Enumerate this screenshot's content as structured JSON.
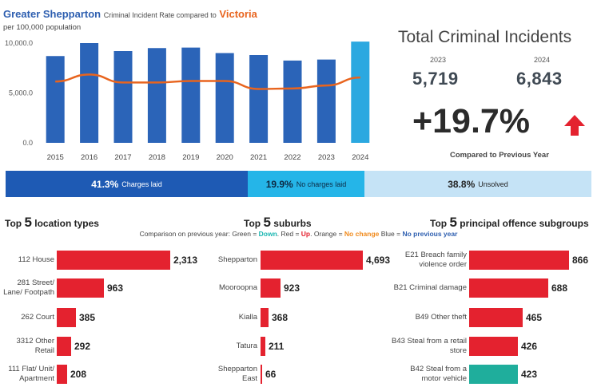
{
  "header": {
    "region": "Greater Shepparton",
    "mid_text": "Criminal Incident Rate compared to",
    "compare_region": "Victoria",
    "subtitle": "per 100,000 population"
  },
  "chart_data": [
    {
      "type": "bar",
      "title": "Greater Shepparton Criminal Incident Rate compared to Victoria",
      "ylabel": "per 100,000 population",
      "categories": [
        "2015",
        "2016",
        "2017",
        "2018",
        "2019",
        "2020",
        "2021",
        "2022",
        "2023",
        "2024"
      ],
      "ylim": [
        0,
        10000
      ],
      "yticks": [
        "0.0",
        "5,000.0",
        "10,000.0"
      ],
      "series": [
        {
          "name": "Greater Shepparton",
          "kind": "bar",
          "color": "#2b64b8",
          "highlight_color": "#2ba8e0",
          "values": [
            8700,
            10000,
            9200,
            9500,
            9550,
            9000,
            8800,
            8250,
            8350,
            10150
          ]
        },
        {
          "name": "Victoria",
          "kind": "line",
          "color": "#e8641e",
          "values": [
            6150,
            6850,
            6050,
            6050,
            6200,
            6200,
            5400,
            5450,
            5750,
            6550
          ]
        }
      ]
    },
    {
      "type": "bar",
      "orientation": "horizontal",
      "title": "Top 5 location types",
      "categories": [
        "112 House",
        "281 Street/ Lane/ Footpath",
        "262 Court",
        "3312 Other Retail",
        "111 Flat/ Unit/ Apartment"
      ],
      "values": [
        2313,
        963,
        385,
        292,
        208
      ],
      "value_labels": [
        "2,313",
        "963",
        "385",
        "292",
        "208"
      ],
      "colors": [
        "#e4222f",
        "#e4222f",
        "#e4222f",
        "#e4222f",
        "#e4222f"
      ]
    },
    {
      "type": "bar",
      "orientation": "horizontal",
      "title": "Top 5 suburbs",
      "categories": [
        "Shepparton",
        "Mooroopna",
        "Kialla",
        "Tatura",
        "Shepparton East"
      ],
      "values": [
        4693,
        923,
        368,
        211,
        66
      ],
      "value_labels": [
        "4,693",
        "923",
        "368",
        "211",
        "66"
      ],
      "colors": [
        "#e4222f",
        "#e4222f",
        "#e4222f",
        "#e4222f",
        "#e4222f"
      ]
    },
    {
      "type": "bar",
      "orientation": "horizontal",
      "title": "Top 5 principal offence subgroups",
      "categories": [
        "E21 Breach family violence order",
        "B21 Criminal damage",
        "B49 Other theft",
        "B43 Steal from a retail store",
        "B42 Steal from a motor vehicle"
      ],
      "values": [
        866,
        688,
        465,
        426,
        423
      ],
      "value_labels": [
        "866",
        "688",
        "465",
        "426",
        "423"
      ],
      "colors": [
        "#e4222f",
        "#e4222f",
        "#e4222f",
        "#e4222f",
        "#1fae9c"
      ]
    }
  ],
  "kpi": {
    "title": "Total Criminal Incidents",
    "year_prev": "2023",
    "value_prev": "5,719",
    "year_curr": "2024",
    "value_curr": "6,843",
    "change": "+19.7%",
    "caption": "Compared to Previous Year",
    "arrow_color": "#e4222f"
  },
  "outcomes": [
    {
      "pct": "41.3%",
      "label": "Charges laid",
      "share": 41.3,
      "color": "#1e5ab4",
      "text_color": "#ffffff"
    },
    {
      "pct": "19.9%",
      "label": "No charges laid",
      "share": 19.9,
      "color": "#25b5e8",
      "text_color": "#0d2a44"
    },
    {
      "pct": "38.8%",
      "label": "Unsolved",
      "share": 38.8,
      "color": "#c5e3f6",
      "text_color": "#222222"
    }
  ],
  "sections": {
    "locations": {
      "pre": "Top",
      "num": "5",
      "post": "location types"
    },
    "suburbs": {
      "pre": "Top",
      "num": "5",
      "post": "suburbs"
    },
    "offences": {
      "pre": "Top",
      "num": "5",
      "post": "principal offence subgroups"
    }
  },
  "legend": {
    "intro": "Comparison on previous year:",
    "green": "Green",
    "green_meaning": "Down",
    "red": "Red",
    "red_meaning": "Up",
    "orange": "Orange",
    "orange_meaning": "No change",
    "blue": "Blue",
    "blue_meaning": "No previous year"
  }
}
